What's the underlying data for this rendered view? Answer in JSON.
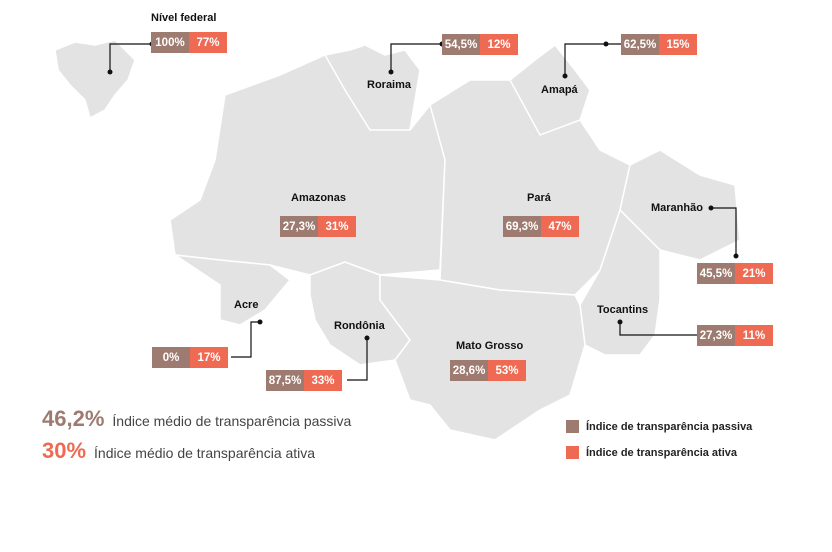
{
  "colors": {
    "passive": "#9e7b70",
    "active": "#ef6a53",
    "map": "#e3e3e3"
  },
  "regions": [
    {
      "id": "federal",
      "name": "Nível federal",
      "passive": "100%",
      "active": "77%"
    },
    {
      "id": "roraima",
      "name": "Roraima",
      "passive": "54,5%",
      "active": "12%"
    },
    {
      "id": "amapa",
      "name": "Amapá",
      "passive": "62,5%",
      "active": "15%"
    },
    {
      "id": "amazonas",
      "name": "Amazonas",
      "passive": "27,3%",
      "active": "31%"
    },
    {
      "id": "para",
      "name": "Pará",
      "passive": "69,3%",
      "active": "47%"
    },
    {
      "id": "maranhao",
      "name": "Maranhão",
      "passive": "45,5%",
      "active": "21%"
    },
    {
      "id": "tocantins",
      "name": "Tocantins",
      "passive": "27,3%",
      "active": "11%"
    },
    {
      "id": "acre",
      "name": "Acre",
      "passive": "0%",
      "active": "17%"
    },
    {
      "id": "rondonia",
      "name": "Rondônia",
      "passive": "87,5%",
      "active": "33%"
    },
    {
      "id": "mato-grosso",
      "name": "Mato Grosso",
      "passive": "28,6%",
      "active": "53%"
    }
  ],
  "summary": {
    "passive_value": "46,2%",
    "passive_label": "Índice médio de transparência passiva",
    "active_value": "30%",
    "active_label": "Índice médio de transparência ativa"
  },
  "legend": {
    "passive": "Índice de transparência passiva",
    "active": "Índice de transparência ativa"
  }
}
